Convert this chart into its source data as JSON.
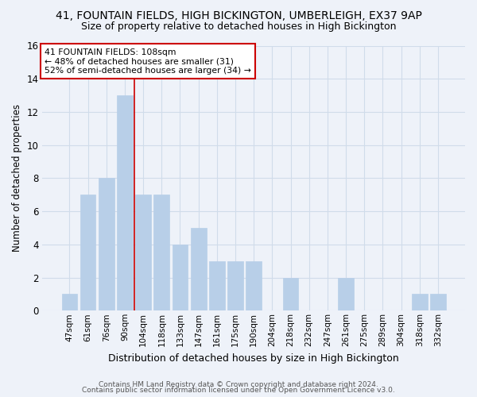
{
  "title": "41, FOUNTAIN FIELDS, HIGH BICKINGTON, UMBERLEIGH, EX37 9AP",
  "subtitle": "Size of property relative to detached houses in High Bickington",
  "xlabel": "Distribution of detached houses by size in High Bickington",
  "ylabel": "Number of detached properties",
  "categories": [
    "47sqm",
    "61sqm",
    "76sqm",
    "90sqm",
    "104sqm",
    "118sqm",
    "133sqm",
    "147sqm",
    "161sqm",
    "175sqm",
    "190sqm",
    "204sqm",
    "218sqm",
    "232sqm",
    "247sqm",
    "261sqm",
    "275sqm",
    "289sqm",
    "304sqm",
    "318sqm",
    "332sqm"
  ],
  "values": [
    1,
    7,
    8,
    13,
    7,
    7,
    4,
    5,
    3,
    3,
    3,
    0,
    2,
    0,
    0,
    2,
    0,
    0,
    0,
    1,
    1
  ],
  "bar_color": "#b8cfe8",
  "bar_edge_color": "#b8cfe8",
  "grid_color": "#d0dcea",
  "vline_x_index": 3.5,
  "annotation_box_text": "41 FOUNTAIN FIELDS: 108sqm\n← 48% of detached houses are smaller (31)\n52% of semi-detached houses are larger (34) →",
  "annotation_box_color": "white",
  "annotation_box_edge_color": "#cc0000",
  "vline_color": "#cc0000",
  "ylim": [
    0,
    16
  ],
  "yticks": [
    0,
    2,
    4,
    6,
    8,
    10,
    12,
    14,
    16
  ],
  "footer1": "Contains HM Land Registry data © Crown copyright and database right 2024.",
  "footer2": "Contains public sector information licensed under the Open Government Licence v3.0.",
  "background_color": "#eef2f9",
  "title_fontsize": 10,
  "subtitle_fontsize": 9,
  "footer_fontsize": 6.5
}
